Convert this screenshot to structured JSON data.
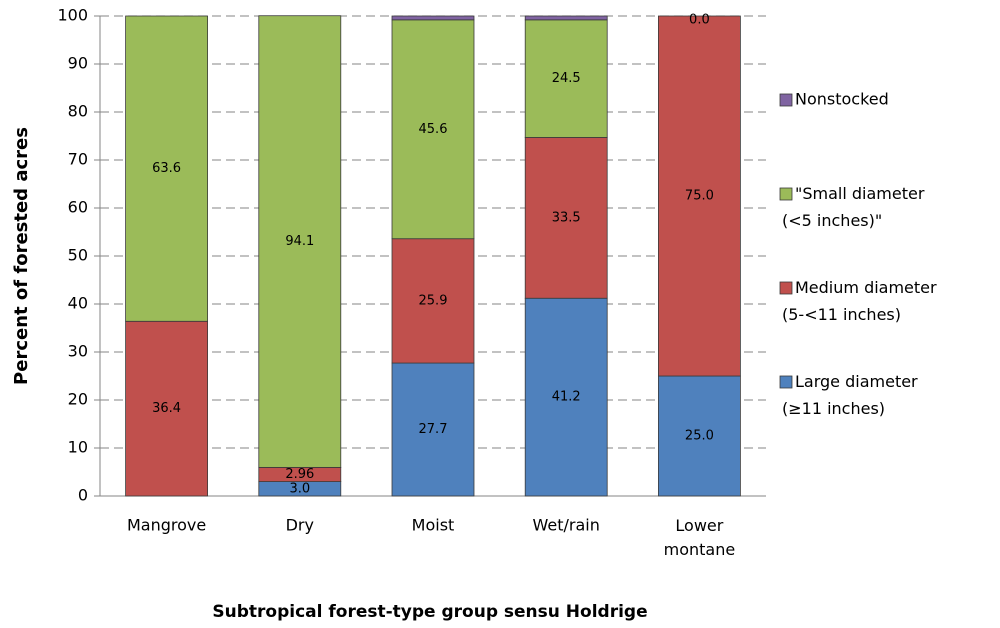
{
  "chart_data": {
    "type": "stacked_bar",
    "x_label": "Subtropical forest-type group sensu Holdrige",
    "y_label": "Percent of forested acres",
    "categories": [
      "Mangrove",
      "Dry",
      "Moist",
      "Wet/rain",
      "Lower montane"
    ],
    "series": [
      {
        "name": "Large diameter (≥11 inches)",
        "color": "#4f81bd",
        "values": [
          0.0,
          3.0,
          27.7,
          41.2,
          25.0
        ],
        "value_labels": [
          "0.0",
          "3.0",
          "27.7",
          "41.2",
          "25.0"
        ]
      },
      {
        "name": "Medium diameter (5-<11 inches)",
        "color": "#c0504d",
        "values": [
          36.4,
          2.96,
          25.9,
          33.5,
          75.0
        ],
        "value_labels": [
          "36.4",
          "2.96",
          "25.9",
          "33.5",
          "75.0"
        ]
      },
      {
        "name": "\"Small diameter (<5 inches)\"",
        "color": "#9bbb59",
        "values": [
          63.6,
          94.1,
          45.6,
          24.5,
          0.0
        ],
        "value_labels": [
          "63.6",
          "94.1",
          "45.6",
          "24.5",
          "0.0"
        ]
      },
      {
        "name": "Nonstocked",
        "color": "#8064a2",
        "values": [
          0,
          0,
          0.8,
          0.8,
          0
        ]
      }
    ],
    "ylim": [
      0,
      100
    ],
    "yticks": [
      0,
      10,
      20,
      30,
      40,
      50,
      60,
      70,
      80,
      90,
      100
    ],
    "grid": true,
    "legend": "right"
  }
}
